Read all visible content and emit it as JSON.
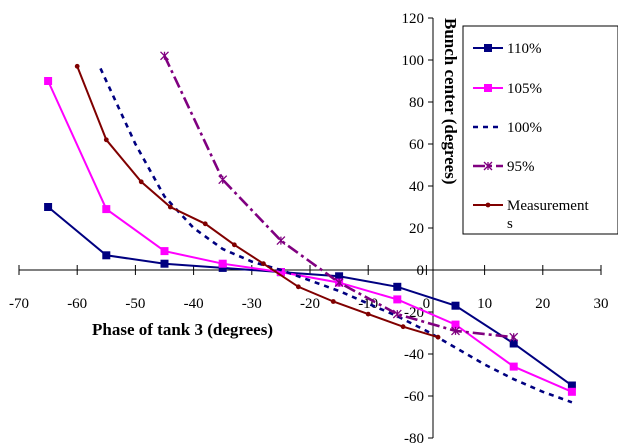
{
  "chart_data": {
    "type": "line",
    "title": "",
    "xlabel": "Phase of tank 3 (degrees)",
    "ylabel": "Bunch center (degrees)",
    "xlim": [
      -70,
      30
    ],
    "ylim": [
      -80,
      120
    ],
    "xticks": [
      -70,
      -60,
      -50,
      -40,
      -30,
      -20,
      -10,
      0,
      10,
      20,
      30
    ],
    "yticks": [
      -80,
      -60,
      -40,
      -20,
      0,
      20,
      40,
      60,
      80,
      100,
      120
    ],
    "grid": false,
    "legend_position": "top-right",
    "series": [
      {
        "name": "110%",
        "color": "#000080",
        "dash": "solid",
        "marker": "square",
        "points": [
          [
            -65,
            30
          ],
          [
            -55,
            7
          ],
          [
            -45,
            3
          ],
          [
            -35,
            1
          ],
          [
            -25,
            -1
          ],
          [
            -15,
            -3
          ],
          [
            -5,
            -8
          ],
          [
            5,
            -17
          ],
          [
            15,
            -35
          ],
          [
            25,
            -55
          ]
        ]
      },
      {
        "name": "105%",
        "color": "#ff00ff",
        "dash": "solid",
        "marker": "square",
        "points": [
          [
            -65,
            90
          ],
          [
            -55,
            29
          ],
          [
            -45,
            9
          ],
          [
            -35,
            3
          ],
          [
            -25,
            -1
          ],
          [
            -15,
            -6
          ],
          [
            -5,
            -14
          ],
          [
            5,
            -26
          ],
          [
            15,
            -46
          ],
          [
            25,
            -58
          ]
        ]
      },
      {
        "name": "100%",
        "color": "#000080",
        "dash": "dotted",
        "marker": "none",
        "points": [
          [
            -56,
            96
          ],
          [
            -50,
            60
          ],
          [
            -45,
            35
          ],
          [
            -40,
            20
          ],
          [
            -35,
            10
          ],
          [
            -30,
            4
          ],
          [
            -25,
            0
          ],
          [
            -20,
            -5
          ],
          [
            -15,
            -10
          ],
          [
            -10,
            -16
          ],
          [
            -5,
            -22
          ],
          [
            0,
            -29
          ],
          [
            5,
            -37
          ],
          [
            10,
            -45
          ],
          [
            15,
            -52
          ],
          [
            20,
            -58
          ],
          [
            25,
            -63
          ]
        ]
      },
      {
        "name": "95%",
        "color": "#800080",
        "dash": "dashdot",
        "marker": "star",
        "points": [
          [
            -45,
            102
          ],
          [
            -35,
            43
          ],
          [
            -25,
            14
          ],
          [
            -15,
            -6
          ],
          [
            -5,
            -21
          ],
          [
            5,
            -29
          ],
          [
            15,
            -32
          ]
        ]
      },
      {
        "name": "Measurements",
        "color": "#800000",
        "dash": "solid",
        "marker": "dot",
        "points": [
          [
            -60,
            97
          ],
          [
            -55,
            62
          ],
          [
            -49,
            42
          ],
          [
            -44,
            30
          ],
          [
            -38,
            22
          ],
          [
            -33,
            12
          ],
          [
            -28,
            3
          ],
          [
            -22,
            -8
          ],
          [
            -16,
            -15
          ],
          [
            -10,
            -21
          ],
          [
            -4,
            -27
          ],
          [
            2,
            -32
          ]
        ]
      }
    ]
  }
}
